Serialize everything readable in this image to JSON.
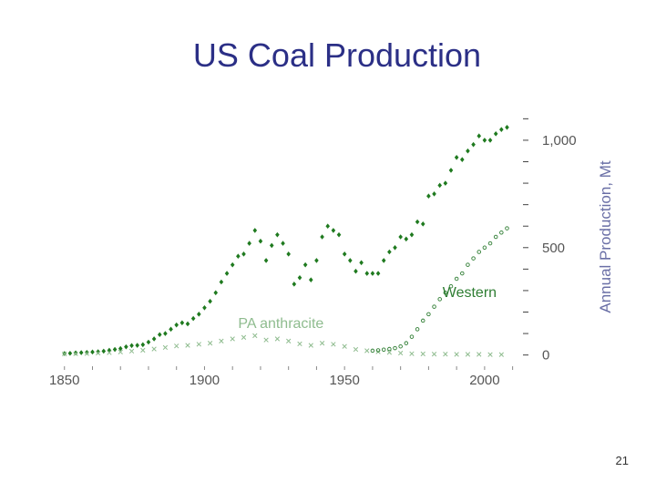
{
  "slide": {
    "title": "US Coal Production",
    "page_number": "21"
  },
  "chart_data": {
    "type": "scatter",
    "title": "US Coal Production",
    "xlabel": "",
    "ylabel": "Annual Production, Mt",
    "xlim": [
      1840,
      2015
    ],
    "ylim": [
      -10,
      1110
    ],
    "xticks": [
      1850,
      1900,
      1950,
      2000
    ],
    "xtick_labels": [
      "1850",
      "1900",
      "1950",
      "2000"
    ],
    "yticks": [
      0,
      500,
      1000
    ],
    "ytick_labels": [
      "0",
      "500",
      "1,000"
    ],
    "y_axis_position": "right",
    "grid": false,
    "legend": "none",
    "annotations": [
      {
        "text": "PA anthracite",
        "x": 1912,
        "y": 125,
        "color": "#8fbc8f"
      },
      {
        "text": "Western",
        "x": 1985,
        "y": 270,
        "color": "#2e7d32"
      }
    ],
    "series": [
      {
        "marker": "diamond",
        "color": "#1f7a1f",
        "x": [
          1850,
          1852,
          1854,
          1856,
          1858,
          1860,
          1862,
          1864,
          1866,
          1868,
          1870,
          1872,
          1874,
          1876,
          1878,
          1880,
          1882,
          1884,
          1886,
          1888,
          1890,
          1892,
          1894,
          1896,
          1898,
          1900,
          1902,
          1904,
          1906,
          1908,
          1910,
          1912,
          1914,
          1916,
          1918,
          1920,
          1922,
          1924,
          1926,
          1928,
          1930,
          1932,
          1934,
          1936,
          1938,
          1940,
          1942,
          1944,
          1946,
          1948,
          1950,
          1952,
          1954,
          1956,
          1958,
          1960,
          1962,
          1964,
          1966,
          1968,
          1970,
          1972,
          1974,
          1976,
          1978,
          1980,
          1982,
          1984,
          1986,
          1988,
          1990,
          1992,
          1994,
          1996,
          1998,
          2000,
          2002,
          2004,
          2006,
          2008
        ],
        "y": [
          7,
          8,
          10,
          11,
          12,
          14,
          15,
          18,
          22,
          26,
          30,
          38,
          44,
          45,
          48,
          60,
          75,
          95,
          100,
          120,
          140,
          150,
          145,
          170,
          190,
          220,
          250,
          290,
          340,
          380,
          420,
          460,
          470,
          520,
          580,
          530,
          440,
          510,
          560,
          520,
          470,
          330,
          360,
          420,
          350,
          440,
          550,
          600,
          580,
          560,
          470,
          440,
          390,
          430,
          380,
          380,
          380,
          440,
          480,
          500,
          550,
          540,
          560,
          620,
          610,
          740,
          750,
          790,
          800,
          860,
          920,
          910,
          950,
          980,
          1020,
          1000,
          1000,
          1030,
          1050,
          1060
        ]
      },
      {
        "marker": "cross",
        "color": "#8fbc8f",
        "x": [
          1850,
          1854,
          1858,
          1862,
          1866,
          1870,
          1874,
          1878,
          1882,
          1886,
          1890,
          1894,
          1898,
          1902,
          1906,
          1910,
          1914,
          1918,
          1922,
          1926,
          1930,
          1934,
          1938,
          1942,
          1946,
          1950,
          1954,
          1958,
          1962,
          1966,
          1970,
          1974,
          1978,
          1982,
          1986,
          1990,
          1994,
          1998,
          2002,
          2006
        ],
        "y": [
          5,
          6,
          7,
          9,
          11,
          14,
          18,
          22,
          28,
          35,
          42,
          45,
          50,
          55,
          65,
          75,
          82,
          90,
          70,
          75,
          65,
          52,
          45,
          55,
          50,
          40,
          26,
          20,
          15,
          12,
          9,
          6,
          5,
          4,
          4,
          3,
          3,
          3,
          2,
          2
        ]
      },
      {
        "name": "Western",
        "marker": "circle-open",
        "color": "#2e7d32",
        "x": [
          1960,
          1962,
          1964,
          1966,
          1968,
          1970,
          1972,
          1974,
          1976,
          1978,
          1980,
          1982,
          1984,
          1986,
          1988,
          1990,
          1992,
          1994,
          1996,
          1998,
          2000,
          2002,
          2004,
          2006,
          2008
        ],
        "y": [
          20,
          22,
          25,
          28,
          32,
          40,
          55,
          85,
          120,
          160,
          190,
          225,
          260,
          290,
          320,
          355,
          380,
          420,
          450,
          480,
          500,
          520,
          550,
          570,
          590
        ]
      }
    ]
  }
}
